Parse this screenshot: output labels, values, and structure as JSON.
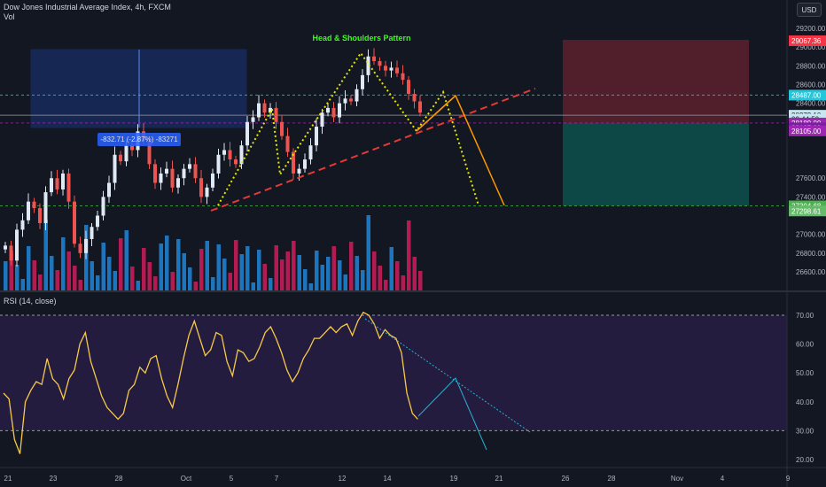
{
  "header": {
    "symbol_line": "Dow Jones Industrial Average Index, 4h, FXCM",
    "volume_label": "Vol"
  },
  "rsi_header": "RSI (14, close)",
  "currency_button": "USD",
  "measure_label": "-832.71 (-2.87%) -83271",
  "pattern_label": "Head & Shoulders Pattern",
  "colors": {
    "background": "#131722",
    "up": "#26a69a",
    "up_candle": "#dfe8f5",
    "down": "#ef5350",
    "vol_up": "#2196f3",
    "vol_down": "#e91e63",
    "rsi_line": "#f7c948",
    "rsi_bg": "#2a1f4a",
    "neckline": "#e53935",
    "pattern": "#e6e600",
    "projection": "#ff9800"
  },
  "chart_data": {
    "type": "candlestick",
    "x_tick_labels": [
      "21",
      "23",
      "28",
      "Oct",
      "5",
      "7",
      "12",
      "14",
      "19",
      "21",
      "26",
      "28",
      "Nov",
      "4",
      "9"
    ],
    "price_axis_ticks": [
      29200,
      29000,
      28800,
      28600,
      28400,
      28200,
      27600,
      27400,
      27000,
      26800,
      26600
    ],
    "price_labels": [
      {
        "value": "29067.36",
        "color": "#f23645"
      },
      {
        "value": "28487.00",
        "color": "#26c6da"
      },
      {
        "value": "28272.10",
        "color": "#c8e6f0"
      },
      {
        "value": "03:44:59",
        "color": "#c8e6f0"
      },
      {
        "value": "28189.00",
        "color": "#9c27b0"
      },
      {
        "value": "28137.39",
        "color": "#7b1fa2"
      },
      {
        "value": "28105.00",
        "color": "#9c27b0"
      },
      {
        "value": "27304.68",
        "color": "#4caf50"
      },
      {
        "value": "27298.61",
        "color": "#66bb6a"
      }
    ],
    "horizontal_levels": [
      28487,
      28272.1,
      28189,
      27304.68
    ],
    "close_path": [
      26880,
      26720,
      27050,
      27150,
      27350,
      27280,
      27120,
      27450,
      27600,
      27480,
      27650,
      27350,
      26900,
      26800,
      26950,
      27080,
      27200,
      27400,
      27550,
      27850,
      27780,
      27950,
      27900,
      28100,
      28000,
      27750,
      27550,
      27650,
      27700,
      27500,
      27600,
      27700,
      27750,
      27600,
      27400,
      27500,
      27650,
      27850,
      27900,
      27800,
      27750,
      27950,
      28200,
      28250,
      28400,
      28300,
      28350,
      28200,
      28050,
      27880,
      27650,
      27700,
      27800,
      27950,
      28150,
      28300,
      28350,
      28250,
      28400,
      28450,
      28420,
      28550,
      28700,
      28900,
      28850,
      28800,
      28750,
      28780,
      28720,
      28650,
      28500,
      28420,
      28300
    ],
    "rsi": {
      "y_ticks": [
        70.0,
        60.0,
        50.0,
        40.0,
        30.0,
        20.0
      ],
      "overbought": 70,
      "oversold": 30,
      "values": [
        43,
        41,
        27,
        22,
        40,
        44,
        47,
        46,
        55,
        48,
        46,
        41,
        48,
        51,
        60,
        64,
        54,
        48,
        42,
        38,
        36,
        34,
        36,
        44,
        46,
        52,
        50,
        55,
        56,
        48,
        42,
        38,
        46,
        55,
        63,
        68,
        62,
        56,
        58,
        64,
        63,
        54,
        49,
        58,
        57,
        54,
        55,
        59,
        64,
        66,
        62,
        57,
        51,
        47,
        50,
        55,
        58,
        62,
        62,
        64,
        66,
        64,
        66,
        67,
        63,
        68,
        71,
        70,
        67,
        62,
        65,
        63,
        62,
        57,
        43,
        36,
        34
      ]
    }
  }
}
